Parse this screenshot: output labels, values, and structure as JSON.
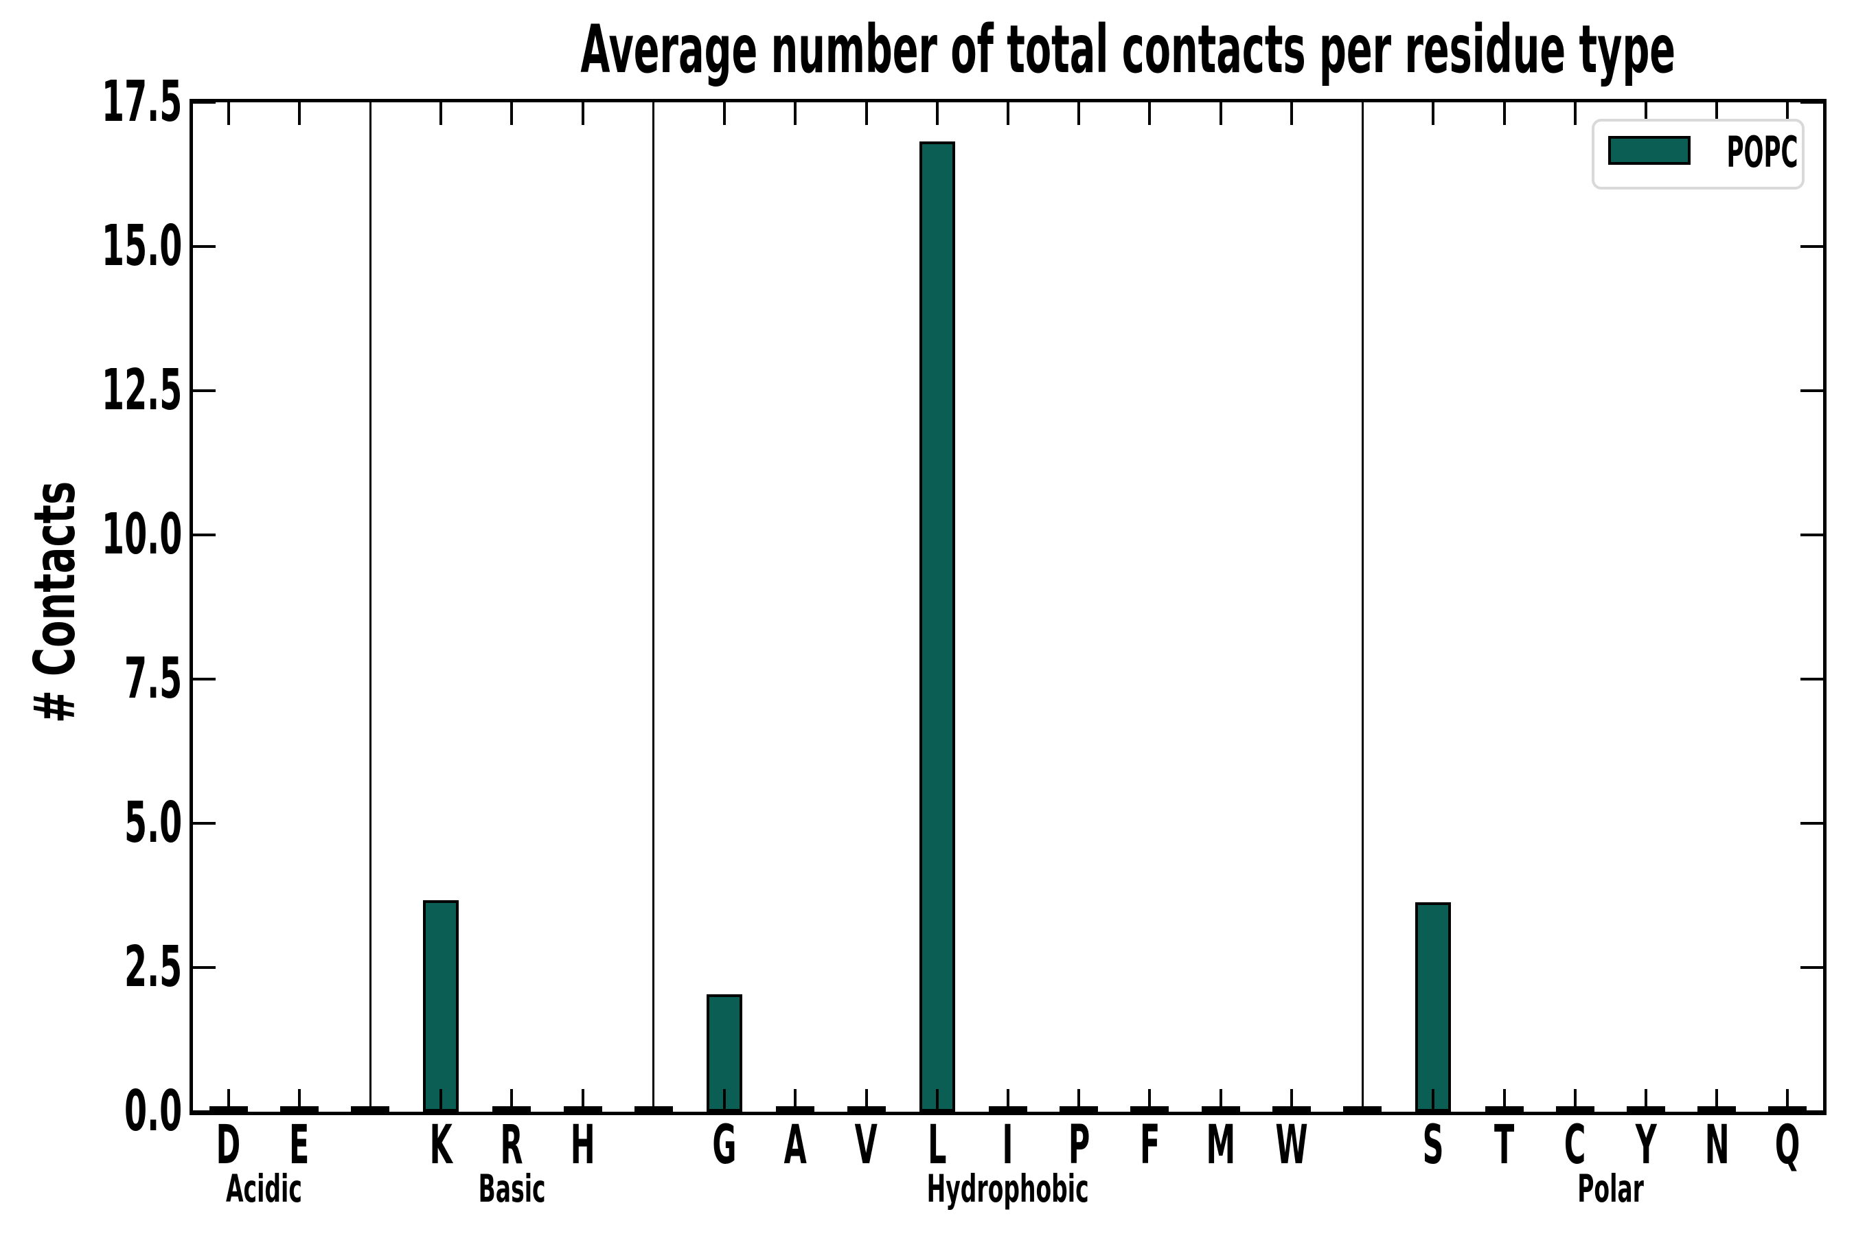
{
  "title": "Average number of total contacts per residue type",
  "y_axis": {
    "label": "# Contacts",
    "tick_labels": [
      "0.0",
      "2.5",
      "5.0",
      "7.5",
      "10.0",
      "12.5",
      "15.0",
      "17.5"
    ]
  },
  "legend": {
    "entries": [
      {
        "label": "POPC",
        "color": "#0a5e53"
      }
    ],
    "position": "upper right"
  },
  "colors": {
    "bar_fill": "#0a5e53",
    "bar_edge": "#000000",
    "spine": "#000000",
    "divider": "#000000",
    "legend_border": "#d9d9d9",
    "text": "#000000",
    "background": "#ffffff"
  },
  "chart_data": {
    "type": "bar",
    "title": "Average number of total contacts per residue type",
    "xlabel": "",
    "ylabel": "# Contacts",
    "ylim": [
      0,
      17.5
    ],
    "yticks": [
      0.0,
      2.5,
      5.0,
      7.5,
      10.0,
      12.5,
      15.0,
      17.5
    ],
    "grid": false,
    "group_separator_lines": true,
    "legend_position": "upper right",
    "series_name": "POPC",
    "groups": [
      {
        "label": "Acidic",
        "categories": [
          "D",
          "E"
        ],
        "values": [
          0.0,
          0.0
        ]
      },
      {
        "label": "Basic",
        "categories": [
          "K",
          "R",
          "H"
        ],
        "values": [
          3.67,
          0.0,
          0.0
        ]
      },
      {
        "label": "Hydrophobic",
        "categories": [
          "G",
          "A",
          "V",
          "L",
          "I",
          "P",
          "F",
          "M",
          "W"
        ],
        "values": [
          2.03,
          0.0,
          0.0,
          16.82,
          0.0,
          0.0,
          0.0,
          0.0,
          0.0
        ]
      },
      {
        "label": "Polar",
        "categories": [
          "S",
          "T",
          "C",
          "Y",
          "N",
          "Q"
        ],
        "values": [
          3.63,
          0.0,
          0.0,
          0.0,
          0.0,
          0.0
        ]
      }
    ]
  }
}
